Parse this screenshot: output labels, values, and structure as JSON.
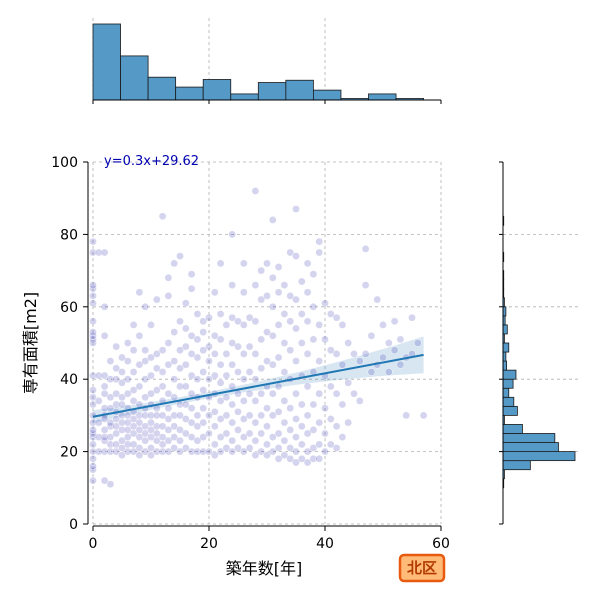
{
  "chart_data": {
    "type": "scatter",
    "xlabel": "築年数[年]",
    "ylabel": "専有面積[m2]",
    "xlim": [
      0,
      60
    ],
    "ylim": [
      0,
      100
    ],
    "x_ticks": [
      0,
      20,
      40,
      60
    ],
    "y_ticks": [
      0,
      20,
      40,
      60,
      80,
      100
    ],
    "grid": true,
    "regression": {
      "label": "y=0.3x+29.62",
      "slope": 0.3,
      "intercept": 29.62,
      "x_range": [
        0,
        57
      ]
    },
    "area_badge": "北区",
    "colors": {
      "points": "#3a3ab4",
      "hist": "#5599c7",
      "line": "#1f77b4",
      "badge_fill": "#ffbb77",
      "badge_stroke": "#e85a10"
    },
    "x_histogram": {
      "bin_edges": [
        0,
        4.75,
        9.5,
        14.25,
        19,
        23.75,
        28.5,
        33.25,
        38,
        42.75,
        47.5,
        52.25,
        57
      ],
      "counts": [
        100,
        58,
        30,
        17,
        27,
        8,
        23,
        26,
        13,
        2,
        8,
        2
      ]
    },
    "y_histogram": {
      "bin_edges": [
        10,
        12.5,
        15,
        17.5,
        20,
        22.5,
        25,
        27.5,
        30,
        32.5,
        35,
        37.5,
        40,
        42.5,
        45,
        47.5,
        50,
        52.5,
        55,
        57.5,
        60,
        62.5,
        65,
        67.5,
        70,
        72.5,
        75,
        77.5,
        80,
        82.5,
        85,
        87.5,
        90,
        92.5
      ],
      "counts": [
        1,
        2,
        38,
        100,
        77,
        72,
        27,
        2,
        20,
        15,
        8,
        14,
        18,
        5,
        4,
        8,
        2,
        6,
        3,
        4,
        2,
        1,
        1,
        1,
        0,
        1,
        0,
        0,
        0,
        1,
        0,
        0,
        0
      ]
    },
    "points": [
      [
        0,
        12
      ],
      [
        0,
        15
      ],
      [
        0,
        16
      ],
      [
        0,
        18
      ],
      [
        0,
        20
      ],
      [
        0,
        22
      ],
      [
        0,
        24
      ],
      [
        0,
        25
      ],
      [
        0,
        26
      ],
      [
        0,
        28
      ],
      [
        0,
        30
      ],
      [
        0,
        33
      ],
      [
        0,
        35
      ],
      [
        0,
        37
      ],
      [
        0,
        41
      ],
      [
        0,
        50
      ],
      [
        0,
        51
      ],
      [
        0,
        52
      ],
      [
        0,
        53
      ],
      [
        0,
        56
      ],
      [
        0,
        61
      ],
      [
        0,
        63
      ],
      [
        0,
        65
      ],
      [
        0,
        66
      ],
      [
        0,
        75
      ],
      [
        0,
        78
      ],
      [
        1,
        20
      ],
      [
        1,
        24
      ],
      [
        1,
        28
      ],
      [
        1,
        34
      ],
      [
        1,
        41
      ],
      [
        1,
        75
      ],
      [
        2,
        12
      ],
      [
        2,
        20
      ],
      [
        2,
        23
      ],
      [
        2,
        24
      ],
      [
        2,
        26
      ],
      [
        2,
        29
      ],
      [
        2,
        30
      ],
      [
        2,
        32
      ],
      [
        2,
        36
      ],
      [
        2,
        38
      ],
      [
        2,
        41
      ],
      [
        2,
        52
      ],
      [
        2,
        60
      ],
      [
        2,
        75
      ],
      [
        3,
        11
      ],
      [
        3,
        20
      ],
      [
        3,
        22
      ],
      [
        3,
        24
      ],
      [
        3,
        27
      ],
      [
        3,
        28
      ],
      [
        3,
        32
      ],
      [
        3,
        35
      ],
      [
        3,
        40
      ],
      [
        3,
        45
      ],
      [
        4,
        20
      ],
      [
        4,
        22
      ],
      [
        4,
        25
      ],
      [
        4,
        27
      ],
      [
        4,
        29
      ],
      [
        4,
        31
      ],
      [
        4,
        33
      ],
      [
        4,
        36
      ],
      [
        4,
        40
      ],
      [
        4,
        43
      ],
      [
        4,
        49
      ],
      [
        5,
        19
      ],
      [
        5,
        21
      ],
      [
        5,
        23
      ],
      [
        5,
        26
      ],
      [
        5,
        28
      ],
      [
        5,
        30
      ],
      [
        5,
        33
      ],
      [
        5,
        35
      ],
      [
        5,
        39
      ],
      [
        5,
        42
      ],
      [
        5,
        46
      ],
      [
        6,
        20
      ],
      [
        6,
        22
      ],
      [
        6,
        24
      ],
      [
        6,
        26
      ],
      [
        6,
        28
      ],
      [
        6,
        30
      ],
      [
        6,
        32
      ],
      [
        6,
        36
      ],
      [
        6,
        40
      ],
      [
        6,
        45
      ],
      [
        6,
        50
      ],
      [
        7,
        20
      ],
      [
        7,
        22
      ],
      [
        7,
        25
      ],
      [
        7,
        27
      ],
      [
        7,
        29
      ],
      [
        7,
        31
      ],
      [
        7,
        34
      ],
      [
        7,
        37
      ],
      [
        7,
        42
      ],
      [
        7,
        48
      ],
      [
        7,
        55
      ],
      [
        8,
        19
      ],
      [
        8,
        21
      ],
      [
        8,
        24
      ],
      [
        8,
        26
      ],
      [
        8,
        28
      ],
      [
        8,
        30
      ],
      [
        8,
        33
      ],
      [
        8,
        38
      ],
      [
        8,
        44
      ],
      [
        8,
        52
      ],
      [
        8,
        64
      ],
      [
        9,
        20
      ],
      [
        9,
        23
      ],
      [
        9,
        25
      ],
      [
        9,
        27
      ],
      [
        9,
        30
      ],
      [
        9,
        32
      ],
      [
        9,
        35
      ],
      [
        9,
        40
      ],
      [
        9,
        45
      ],
      [
        9,
        48
      ],
      [
        9,
        60
      ],
      [
        10,
        19
      ],
      [
        10,
        21
      ],
      [
        10,
        24
      ],
      [
        10,
        26
      ],
      [
        10,
        28
      ],
      [
        10,
        30
      ],
      [
        10,
        33
      ],
      [
        10,
        36
      ],
      [
        10,
        41
      ],
      [
        10,
        46
      ],
      [
        10,
        55
      ],
      [
        11,
        20
      ],
      [
        11,
        23
      ],
      [
        11,
        25
      ],
      [
        11,
        27
      ],
      [
        11,
        30
      ],
      [
        11,
        32
      ],
      [
        11,
        37
      ],
      [
        11,
        43
      ],
      [
        11,
        47
      ],
      [
        11,
        62
      ],
      [
        12,
        20
      ],
      [
        12,
        22
      ],
      [
        12,
        24
      ],
      [
        12,
        27
      ],
      [
        12,
        30
      ],
      [
        12,
        34
      ],
      [
        12,
        38
      ],
      [
        12,
        42
      ],
      [
        12,
        48
      ],
      [
        12,
        85
      ],
      [
        13,
        20
      ],
      [
        13,
        23
      ],
      [
        13,
        26
      ],
      [
        13,
        29
      ],
      [
        13,
        32
      ],
      [
        13,
        36
      ],
      [
        13,
        44
      ],
      [
        13,
        50
      ],
      [
        13,
        63
      ],
      [
        13,
        68
      ],
      [
        14,
        21
      ],
      [
        14,
        24
      ],
      [
        14,
        27
      ],
      [
        14,
        30
      ],
      [
        14,
        35
      ],
      [
        14,
        40
      ],
      [
        14,
        45
      ],
      [
        14,
        53
      ],
      [
        14,
        72
      ],
      [
        15,
        20
      ],
      [
        15,
        23
      ],
      [
        15,
        26
      ],
      [
        15,
        30
      ],
      [
        15,
        33
      ],
      [
        15,
        38
      ],
      [
        15,
        43
      ],
      [
        15,
        48
      ],
      [
        15,
        56
      ],
      [
        15,
        74
      ],
      [
        16,
        21
      ],
      [
        16,
        25
      ],
      [
        16,
        29
      ],
      [
        16,
        33
      ],
      [
        16,
        38
      ],
      [
        16,
        44
      ],
      [
        16,
        49
      ],
      [
        16,
        54
      ],
      [
        16,
        61
      ],
      [
        17,
        20
      ],
      [
        17,
        24
      ],
      [
        17,
        28
      ],
      [
        17,
        32
      ],
      [
        17,
        36
      ],
      [
        17,
        41
      ],
      [
        17,
        47
      ],
      [
        17,
        52
      ],
      [
        17,
        65
      ],
      [
        17,
        69
      ],
      [
        18,
        20
      ],
      [
        18,
        23
      ],
      [
        18,
        27
      ],
      [
        18,
        30
      ],
      [
        18,
        35
      ],
      [
        18,
        40
      ],
      [
        18,
        46
      ],
      [
        18,
        51
      ],
      [
        18,
        58
      ],
      [
        19,
        20
      ],
      [
        19,
        24
      ],
      [
        19,
        28
      ],
      [
        19,
        32
      ],
      [
        19,
        37
      ],
      [
        19,
        42
      ],
      [
        19,
        48
      ],
      [
        19,
        53
      ],
      [
        19,
        56
      ],
      [
        20,
        20
      ],
      [
        20,
        25
      ],
      [
        20,
        30
      ],
      [
        20,
        35
      ],
      [
        20,
        40
      ],
      [
        20,
        45
      ],
      [
        20,
        49
      ],
      [
        20,
        57
      ],
      [
        21,
        19
      ],
      [
        21,
        22
      ],
      [
        21,
        27
      ],
      [
        21,
        31
      ],
      [
        21,
        36
      ],
      [
        21,
        41
      ],
      [
        21,
        47
      ],
      [
        21,
        52
      ],
      [
        21,
        64
      ],
      [
        22,
        20
      ],
      [
        22,
        24
      ],
      [
        22,
        29
      ],
      [
        22,
        34
      ],
      [
        22,
        39
      ],
      [
        22,
        44
      ],
      [
        22,
        51
      ],
      [
        22,
        58
      ],
      [
        22,
        72
      ],
      [
        23,
        21
      ],
      [
        23,
        25
      ],
      [
        23,
        30
      ],
      [
        23,
        35
      ],
      [
        23,
        41
      ],
      [
        23,
        47
      ],
      [
        23,
        55
      ],
      [
        24,
        20
      ],
      [
        24,
        23
      ],
      [
        24,
        28
      ],
      [
        24,
        33
      ],
      [
        24,
        38
      ],
      [
        24,
        44
      ],
      [
        24,
        50
      ],
      [
        24,
        57
      ],
      [
        24,
        66
      ],
      [
        24,
        80
      ],
      [
        25,
        21
      ],
      [
        25,
        26
      ],
      [
        25,
        31
      ],
      [
        25,
        36
      ],
      [
        25,
        42
      ],
      [
        25,
        49
      ],
      [
        25,
        56
      ],
      [
        26,
        20
      ],
      [
        26,
        24
      ],
      [
        26,
        29
      ],
      [
        26,
        34
      ],
      [
        26,
        40
      ],
      [
        26,
        47
      ],
      [
        26,
        55
      ],
      [
        26,
        64
      ],
      [
        26,
        72
      ],
      [
        27,
        21
      ],
      [
        27,
        25
      ],
      [
        27,
        30
      ],
      [
        27,
        36
      ],
      [
        27,
        42
      ],
      [
        27,
        49
      ],
      [
        27,
        57
      ],
      [
        28,
        19
      ],
      [
        28,
        23
      ],
      [
        28,
        28
      ],
      [
        28,
        34
      ],
      [
        28,
        40
      ],
      [
        28,
        47
      ],
      [
        28,
        56
      ],
      [
        28,
        66
      ],
      [
        28,
        92
      ],
      [
        29,
        20
      ],
      [
        29,
        25
      ],
      [
        29,
        30
      ],
      [
        29,
        36
      ],
      [
        29,
        43
      ],
      [
        29,
        51
      ],
      [
        29,
        62
      ],
      [
        29,
        70
      ],
      [
        30,
        19
      ],
      [
        30,
        22
      ],
      [
        30,
        27
      ],
      [
        30,
        32
      ],
      [
        30,
        38
      ],
      [
        30,
        45
      ],
      [
        30,
        53
      ],
      [
        30,
        63
      ],
      [
        30,
        72
      ],
      [
        31,
        20
      ],
      [
        31,
        24
      ],
      [
        31,
        30
      ],
      [
        31,
        36
      ],
      [
        31,
        44
      ],
      [
        31,
        52
      ],
      [
        31,
        60
      ],
      [
        31,
        68
      ],
      [
        31,
        84
      ],
      [
        32,
        18
      ],
      [
        32,
        21
      ],
      [
        32,
        25
      ],
      [
        32,
        31
      ],
      [
        32,
        38
      ],
      [
        32,
        46
      ],
      [
        32,
        55
      ],
      [
        32,
        64
      ],
      [
        32,
        71
      ],
      [
        33,
        19
      ],
      [
        33,
        23
      ],
      [
        33,
        28
      ],
      [
        33,
        34
      ],
      [
        33,
        42
      ],
      [
        33,
        50
      ],
      [
        33,
        58
      ],
      [
        33,
        66
      ],
      [
        34,
        18
      ],
      [
        34,
        21
      ],
      [
        34,
        26
      ],
      [
        34,
        32
      ],
      [
        34,
        40
      ],
      [
        34,
        48
      ],
      [
        34,
        56
      ],
      [
        34,
        63
      ],
      [
        34,
        75
      ],
      [
        35,
        17
      ],
      [
        35,
        20
      ],
      [
        35,
        24
      ],
      [
        35,
        29
      ],
      [
        35,
        36
      ],
      [
        35,
        45
      ],
      [
        35,
        54
      ],
      [
        35,
        62
      ],
      [
        35,
        74
      ],
      [
        35,
        87
      ],
      [
        36,
        18
      ],
      [
        36,
        22
      ],
      [
        36,
        27
      ],
      [
        36,
        33
      ],
      [
        36,
        41
      ],
      [
        36,
        50
      ],
      [
        36,
        58
      ],
      [
        36,
        67
      ],
      [
        37,
        17
      ],
      [
        37,
        20
      ],
      [
        37,
        25
      ],
      [
        37,
        30
      ],
      [
        37,
        38
      ],
      [
        37,
        47
      ],
      [
        37,
        56
      ],
      [
        37,
        64
      ],
      [
        37,
        72
      ],
      [
        38,
        18
      ],
      [
        38,
        21
      ],
      [
        38,
        26
      ],
      [
        38,
        33
      ],
      [
        38,
        42
      ],
      [
        38,
        51
      ],
      [
        38,
        60
      ],
      [
        38,
        69
      ],
      [
        39,
        18
      ],
      [
        39,
        22
      ],
      [
        39,
        28
      ],
      [
        39,
        36
      ],
      [
        39,
        45
      ],
      [
        39,
        55
      ],
      [
        39,
        75
      ],
      [
        39,
        78
      ],
      [
        40,
        20
      ],
      [
        40,
        25
      ],
      [
        40,
        32
      ],
      [
        40,
        41
      ],
      [
        40,
        51
      ],
      [
        40,
        61
      ],
      [
        41,
        22
      ],
      [
        41,
        29
      ],
      [
        41,
        38
      ],
      [
        41,
        48
      ],
      [
        41,
        58
      ],
      [
        42,
        21
      ],
      [
        42,
        27
      ],
      [
        42,
        36
      ],
      [
        42,
        47
      ],
      [
        42,
        57
      ],
      [
        43,
        24
      ],
      [
        43,
        33
      ],
      [
        43,
        44
      ],
      [
        43,
        55
      ],
      [
        44,
        28
      ],
      [
        44,
        39
      ],
      [
        44,
        50
      ],
      [
        45,
        36
      ],
      [
        45,
        47
      ],
      [
        46,
        34
      ],
      [
        46,
        45
      ],
      [
        47,
        47
      ],
      [
        47,
        66
      ],
      [
        47,
        76
      ],
      [
        48,
        42
      ],
      [
        48,
        52
      ],
      [
        49,
        44
      ],
      [
        49,
        62
      ],
      [
        50,
        46
      ],
      [
        50,
        55
      ],
      [
        51,
        42
      ],
      [
        51,
        50
      ],
      [
        52,
        48
      ],
      [
        52,
        56
      ],
      [
        53,
        44
      ],
      [
        53,
        51
      ],
      [
        54,
        30
      ],
      [
        54,
        46
      ],
      [
        55,
        47
      ],
      [
        55,
        57
      ],
      [
        56,
        50
      ],
      [
        57,
        30
      ]
    ]
  }
}
